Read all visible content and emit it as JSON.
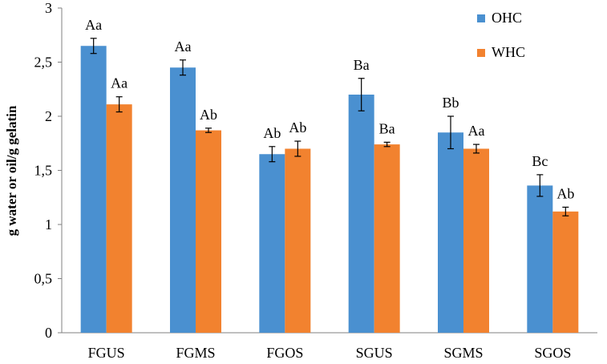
{
  "chart_data": {
    "type": "bar",
    "title": "",
    "xlabel": "",
    "ylabel": "g water or oil/g gelatin",
    "ylim": [
      0,
      3
    ],
    "yticks": [
      0,
      0.5,
      1,
      1.5,
      2,
      2.5,
      3
    ],
    "ytick_labels": [
      "0",
      "0,5",
      "1",
      "1,5",
      "2",
      "2,5",
      "3"
    ],
    "categories": [
      "FGUS",
      "FGMS",
      "FGOS",
      "SGUS",
      "SGMS",
      "SGOS"
    ],
    "grid": false,
    "legend_position": "top-right",
    "series": [
      {
        "name": "OHC",
        "color": "#4a90d0",
        "values": [
          2.65,
          2.45,
          1.65,
          2.2,
          1.85,
          1.36
        ],
        "errors": [
          0.07,
          0.07,
          0.07,
          0.15,
          0.15,
          0.1
        ],
        "labels": [
          "Aa",
          "Aa",
          "Ab",
          "Ba",
          "Bb",
          "Bc"
        ]
      },
      {
        "name": "WHC",
        "color": "#f2822f",
        "values": [
          2.11,
          1.87,
          1.7,
          1.74,
          1.7,
          1.12
        ],
        "errors": [
          0.07,
          0.02,
          0.07,
          0.02,
          0.04,
          0.04
        ],
        "labels": [
          "Aa",
          "Ab",
          "Ab",
          "Ba",
          "Aa",
          "Ab"
        ]
      }
    ]
  }
}
